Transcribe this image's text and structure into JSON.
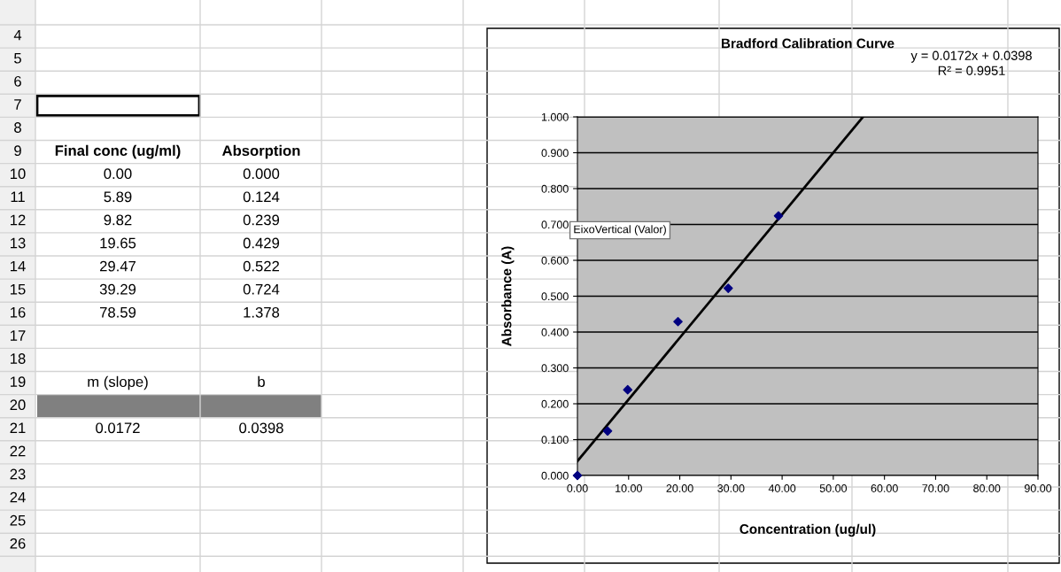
{
  "chart_data": {
    "type": "scatter",
    "title": "Bradford Calibration Curve",
    "xlabel": "Concentration (ug/ul)",
    "ylabel": "Absorbance (A)",
    "xlim": [
      0,
      90
    ],
    "ylim": [
      0,
      1.0
    ],
    "xticks": [
      {
        "value": 0,
        "label": "0.00"
      },
      {
        "value": 10,
        "label": "10.00"
      },
      {
        "value": 20,
        "label": "20.00"
      },
      {
        "value": 30,
        "label": "30.00"
      },
      {
        "value": 40,
        "label": "40.00"
      },
      {
        "value": 50,
        "label": "50.00"
      },
      {
        "value": 60,
        "label": "60.00"
      },
      {
        "value": 70,
        "label": "70.00"
      },
      {
        "value": 80,
        "label": "80.00"
      },
      {
        "value": 90,
        "label": "90.00"
      }
    ],
    "yticks": [
      {
        "value": 0,
        "label": "0.000"
      },
      {
        "value": 0.1,
        "label": "0.100"
      },
      {
        "value": 0.2,
        "label": "0.200"
      },
      {
        "value": 0.3,
        "label": "0.300"
      },
      {
        "value": 0.4,
        "label": "0.400"
      },
      {
        "value": 0.5,
        "label": "0.500"
      },
      {
        "value": 0.6,
        "label": "0.600"
      },
      {
        "value": 0.7,
        "label": "0.700"
      },
      {
        "value": 0.8,
        "label": "0.800"
      },
      {
        "value": 0.9,
        "label": "0.900"
      },
      {
        "value": 1.0,
        "label": "1.000"
      }
    ],
    "grid": "y",
    "series": [
      {
        "color": "#000080",
        "marker": "diamond",
        "x": [
          0,
          5.89,
          9.82,
          19.65,
          29.47,
          39.29
        ],
        "values": [
          0,
          0.124,
          0.239,
          0.429,
          0.522,
          0.724
        ]
      },
      {
        "type": "line",
        "color": "#000000",
        "marker": "none",
        "line_style": "solid",
        "x": [
          0,
          55.81
        ],
        "values": [
          0.04,
          1.0
        ]
      }
    ],
    "annotations": [
      "y = 0.0172x + 0.0398",
      "R² = 0.9951",
      "EixoVertical (Valor)",
      "4",
      "5",
      "6",
      "7",
      "8",
      "9",
      "10",
      "11",
      "12",
      "13",
      "14",
      "15",
      "16",
      "17",
      "18",
      "19",
      "20",
      "21",
      "22",
      "23",
      "24",
      "25",
      "26",
      "Final conc (ug/ml)",
      "Absorption",
      "0.00",
      "0.000",
      "5.89",
      "0.124",
      "9.82",
      "0.239",
      "19.65",
      "0.429",
      "29.47",
      "0.522",
      "39.29",
      "0.724",
      "78.59",
      "1.378",
      "m (slope)",
      "b",
      "0.0172",
      "0.0398"
    ]
  }
}
